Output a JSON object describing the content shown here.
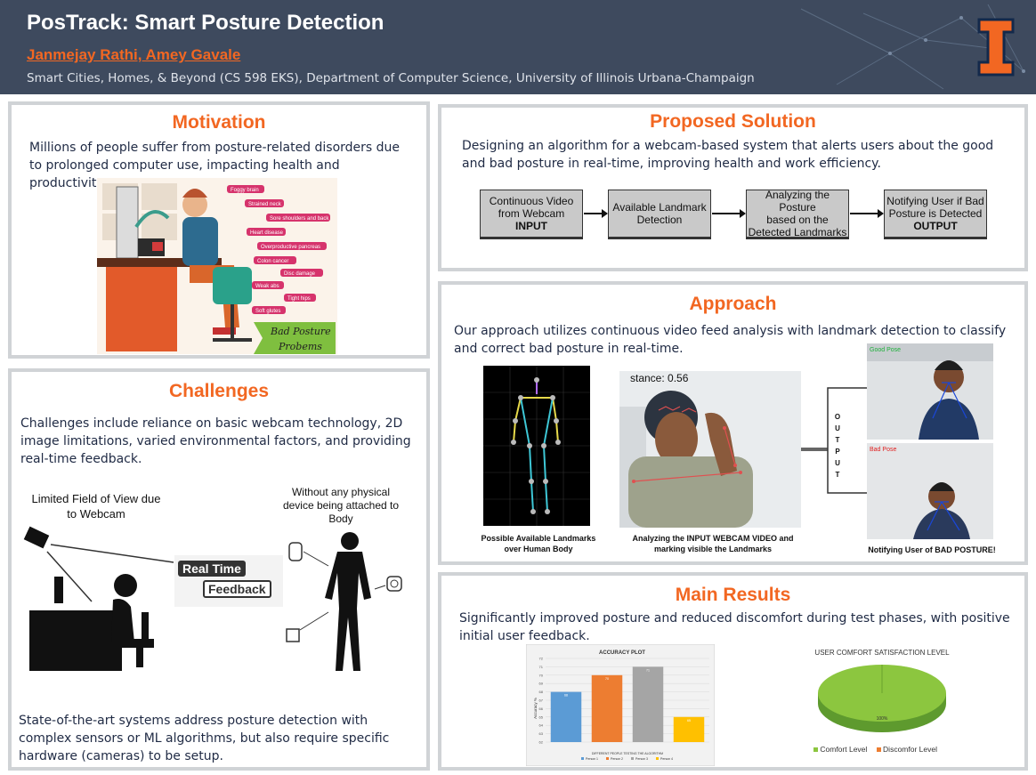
{
  "header": {
    "title": "PosTrack: Smart Posture Detection",
    "authors": "Janmejay Rathi, Amey Gavale",
    "affiliation": "Smart Cities, Homes, & Beyond (CS 598 EKS), Department of Computer Science, University of Illinois Urbana-Champaign",
    "logo_letter": "I"
  },
  "motivation": {
    "title": "Motivation",
    "text": "Millions of people suffer from posture-related disorders due to prolonged computer use, impacting health and productivity.",
    "figure_labels": [
      "Foggy brain",
      "Strained neck",
      "Sore shoulders and back",
      "Heart disease",
      "Overproductive pancreas",
      "Colon cancer",
      "Disc damage",
      "Weak abs",
      "Tight hips",
      "Soft glutes"
    ],
    "figure_banner": [
      "Bad Posture",
      "Probems"
    ]
  },
  "challenges": {
    "title": "Challenges",
    "text": "Challenges include reliance on basic webcam technology, 2D image limitations, varied environmental factors, and providing real-time feedback.",
    "label_left": "Limited Field of View due to Webcam",
    "label_right": "Without any physical device being attached to Body",
    "badge_1": "Real Time",
    "badge_2": "Feedback",
    "text2": "State-of-the-art systems address posture detection with complex sensors or ML algorithms, but also require specific hardware (cameras) to be setup."
  },
  "solution": {
    "title": "Proposed Solution",
    "text": "Designing an algorithm for a webcam-based system that alerts users about the good and bad posture in real-time, improving health and work efficiency.",
    "steps": [
      {
        "line1": "Continuous Video",
        "line2": "from Webcam",
        "line3": "INPUT"
      },
      {
        "line1": "Available Landmark",
        "line2": "Detection",
        "line3": ""
      },
      {
        "line1": "Analyzing the Posture",
        "line2": "based on the",
        "line3": "Detected Landmarks"
      },
      {
        "line1": "Notifying User if Bad",
        "line2": "Posture is Detected",
        "line3": "OUTPUT"
      }
    ]
  },
  "approach": {
    "title": "Approach",
    "text": "Our approach utilizes continuous video feed analysis with landmark detection to classify and correct bad posture in real-time.",
    "caption_1": "Possible Available Landmarks over Human Body",
    "caption_2": "Analyzing the INPUT WEBCAM VIDEO and marking visible the Landmarks",
    "caption_3": "Notifying User of BAD POSTURE!",
    "distance_label": "stance: 0.56",
    "output_letters": [
      "O",
      "U",
      "T",
      "P",
      "U",
      "T"
    ],
    "good_label": "Good Pose",
    "bad_label": "Bad Pose"
  },
  "results": {
    "title": "Main Results",
    "text": "Significantly improved posture and reduced discomfort during test phases, with positive initial user feedback.",
    "pie_title": "USER COMFORT SATISFACTION LEVEL",
    "pie_label": "100%",
    "pie_legend": [
      "Comfort Level",
      "Discomfor Level"
    ]
  },
  "chart_data": {
    "type": "bar",
    "title": "ACCURACY PLOT",
    "xlabel": "DIFFERENT PEOPLE TESTING THE ALGORITHM",
    "ylabel": "Accuracy %",
    "categories": [
      "Person 1",
      "Person 2",
      "Person 3",
      "Person 4"
    ],
    "values": [
      68,
      70,
      71,
      65
    ],
    "colors": [
      "#5b9bd5",
      "#ed7d31",
      "#a5a5a5",
      "#ffc000"
    ],
    "yticks": [
      "62",
      "63",
      "64",
      "65",
      "66",
      "67",
      "68",
      "69",
      "70",
      "71",
      "72"
    ],
    "ylim": [
      62,
      72
    ]
  },
  "colors": {
    "accent": "#f26722",
    "header": "#3e4a5e",
    "border": "#d0d3d6",
    "text": "#1f2a44"
  }
}
